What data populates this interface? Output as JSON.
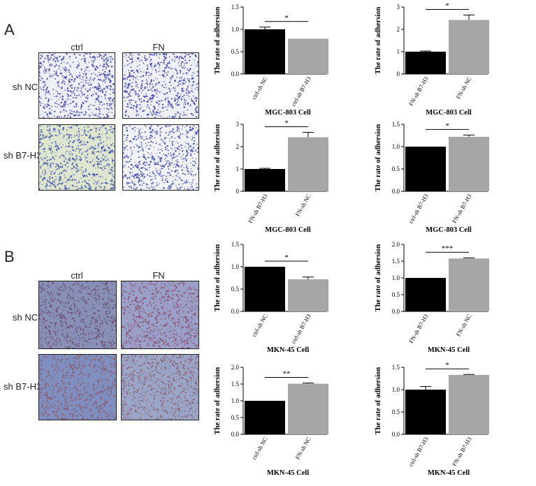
{
  "panels": [
    {
      "letter": "A",
      "col_labels": [
        "ctrl",
        "FN"
      ],
      "row_labels": [
        "sh NC",
        "sh B7-H3"
      ]
    },
    {
      "letter": "B",
      "col_labels": [
        "ctrl",
        "FN"
      ],
      "row_labels": [
        "sh NC",
        "sh B7-H3"
      ]
    }
  ],
  "micrographs": [
    {
      "panel": "A",
      "row": "sh NC",
      "col": "ctrl",
      "background": "#eef0f8",
      "dot": "#3b3fa8"
    },
    {
      "panel": "A",
      "row": "sh NC",
      "col": "FN",
      "background": "#eef0f8",
      "dot": "#3b3fa8"
    },
    {
      "panel": "A",
      "row": "sh B7-H3",
      "col": "ctrl",
      "background": "#dfe6cf",
      "dot": "#3b4fb0"
    },
    {
      "panel": "A",
      "row": "sh B7-H3",
      "col": "FN",
      "background": "#f2f3f6",
      "dot": "#3b48b0"
    },
    {
      "panel": "B",
      "row": "sh NC",
      "col": "ctrl",
      "background": "#8890b8",
      "dot": "#6b4e70"
    },
    {
      "panel": "B",
      "row": "sh NC",
      "col": "FN",
      "background": "#9aa0c8",
      "dot": "#8a4b6a"
    },
    {
      "panel": "B",
      "row": "sh B7-H3",
      "col": "ctrl",
      "background": "#7f8fc0",
      "dot": "#8a5a6a"
    },
    {
      "panel": "B",
      "row": "sh B7-H3",
      "col": "FN",
      "background": "#9aa5c8",
      "dot": "#8a6070"
    }
  ],
  "colors": {
    "dark_bar": "#000000",
    "light_bar": "#a6a6a6"
  },
  "chart_data": [
    {
      "type": "bar",
      "title": "",
      "xlabel": "MGC-803 Cell",
      "ylabel": "The rate of adhersion",
      "categories": [
        "ctrl-sh NC",
        "ctrl-sh B7-H3"
      ],
      "values": [
        1.0,
        0.79
      ],
      "errors": [
        0.05,
        0.0
      ],
      "ylim": [
        0,
        1.5
      ],
      "yticks": [
        "0.0",
        "0.5",
        "1.0",
        "1.5"
      ],
      "significance": "*"
    },
    {
      "type": "bar",
      "title": "",
      "xlabel": "MGC-803 Cell",
      "ylabel": "The rate of adhersion",
      "categories": [
        "FN-sh B7-H3",
        "FN-sh NC"
      ],
      "values": [
        1.0,
        2.42
      ],
      "errors": [
        0.03,
        0.22
      ],
      "ylim": [
        0,
        3
      ],
      "yticks": [
        "0",
        "1",
        "2",
        "3"
      ],
      "significance": "*"
    },
    {
      "type": "bar",
      "title": "",
      "xlabel": "MGC-803 Cell",
      "ylabel": "The rate of adhersion",
      "categories": [
        "FN-sh B7-H3",
        "FN-sh NC"
      ],
      "values": [
        1.0,
        2.42
      ],
      "errors": [
        0.03,
        0.22
      ],
      "ylim": [
        0,
        3
      ],
      "yticks": [
        "0",
        "1",
        "2",
        "3"
      ],
      "significance": "*"
    },
    {
      "type": "bar",
      "title": "",
      "xlabel": "MGC-803 Cell",
      "ylabel": "The rate of adhersion",
      "categories": [
        "ctrl-sh B7-H3",
        "FN-sh B7-H3"
      ],
      "values": [
        1.0,
        1.22
      ],
      "errors": [
        0.0,
        0.04
      ],
      "ylim": [
        0,
        1.5
      ],
      "yticks": [
        "0.0",
        "0.5",
        "1.0",
        "1.5"
      ],
      "significance": "*"
    },
    {
      "type": "bar",
      "title": "",
      "xlabel": "MKN-45 Cell",
      "ylabel": "The rate of adhersion",
      "categories": [
        "ctrl-sh NC",
        "ctrl-sh B7-H3"
      ],
      "values": [
        1.0,
        0.72
      ],
      "errors": [
        0.0,
        0.05
      ],
      "ylim": [
        0,
        1.5
      ],
      "yticks": [
        "0.0",
        "0.5",
        "1.0",
        "1.5"
      ],
      "significance": "*"
    },
    {
      "type": "bar",
      "title": "",
      "xlabel": "MKN-45 Cell",
      "ylabel": "The rate of adhersion",
      "categories": [
        "FN-sh B7-H3",
        "FN-sh NC"
      ],
      "values": [
        1.0,
        1.58
      ],
      "errors": [
        0.0,
        0.02
      ],
      "ylim": [
        0,
        2.0
      ],
      "yticks": [
        "0.0",
        "0.5",
        "1.0",
        "1.5",
        "2.0"
      ],
      "significance": "***"
    },
    {
      "type": "bar",
      "title": "",
      "xlabel": "MKN-45 Cell",
      "ylabel": "The rate of adhersion",
      "categories": [
        "ctrl-sh NC",
        "FN-sh NC"
      ],
      "values": [
        1.0,
        1.51
      ],
      "errors": [
        0.0,
        0.02
      ],
      "ylim": [
        0,
        2.0
      ],
      "yticks": [
        "0.0",
        "0.5",
        "1.0",
        "1.5",
        "2.0"
      ],
      "significance": "**"
    },
    {
      "type": "bar",
      "title": "",
      "xlabel": "MKN-45 Cell",
      "ylabel": "The rate of adhersion",
      "categories": [
        "ctrl-sh B7-H3",
        "FN-sh B7-H3"
      ],
      "values": [
        1.0,
        1.33
      ],
      "errors": [
        0.07,
        0.01
      ],
      "ylim": [
        0,
        1.5
      ],
      "yticks": [
        "0.0",
        "0.5",
        "1.0",
        "1.5"
      ],
      "significance": "*"
    }
  ]
}
